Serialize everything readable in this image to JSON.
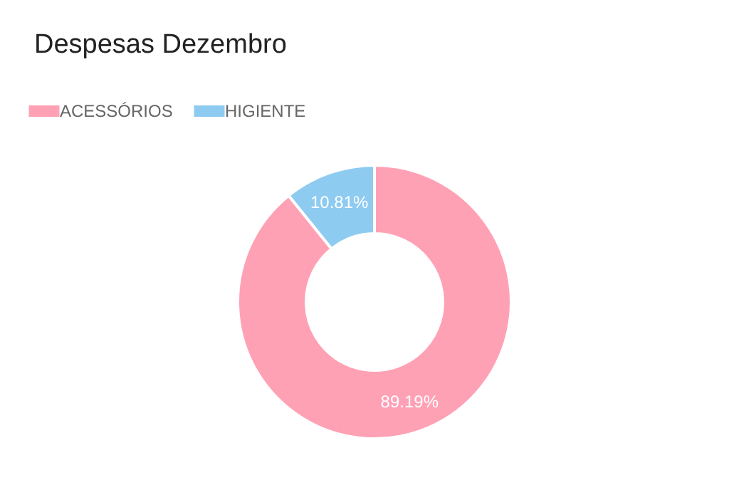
{
  "chart_data": {
    "type": "donut",
    "title": "Despesas Dezembro",
    "categories": [
      "ACESSÓRIOS",
      "HIGIENTE"
    ],
    "values": [
      89.19,
      10.81
    ],
    "colors": [
      "#ffa1b5",
      "#8ecbf1"
    ],
    "value_labels": [
      "89.19%",
      "10.81%"
    ],
    "legend": "top"
  }
}
